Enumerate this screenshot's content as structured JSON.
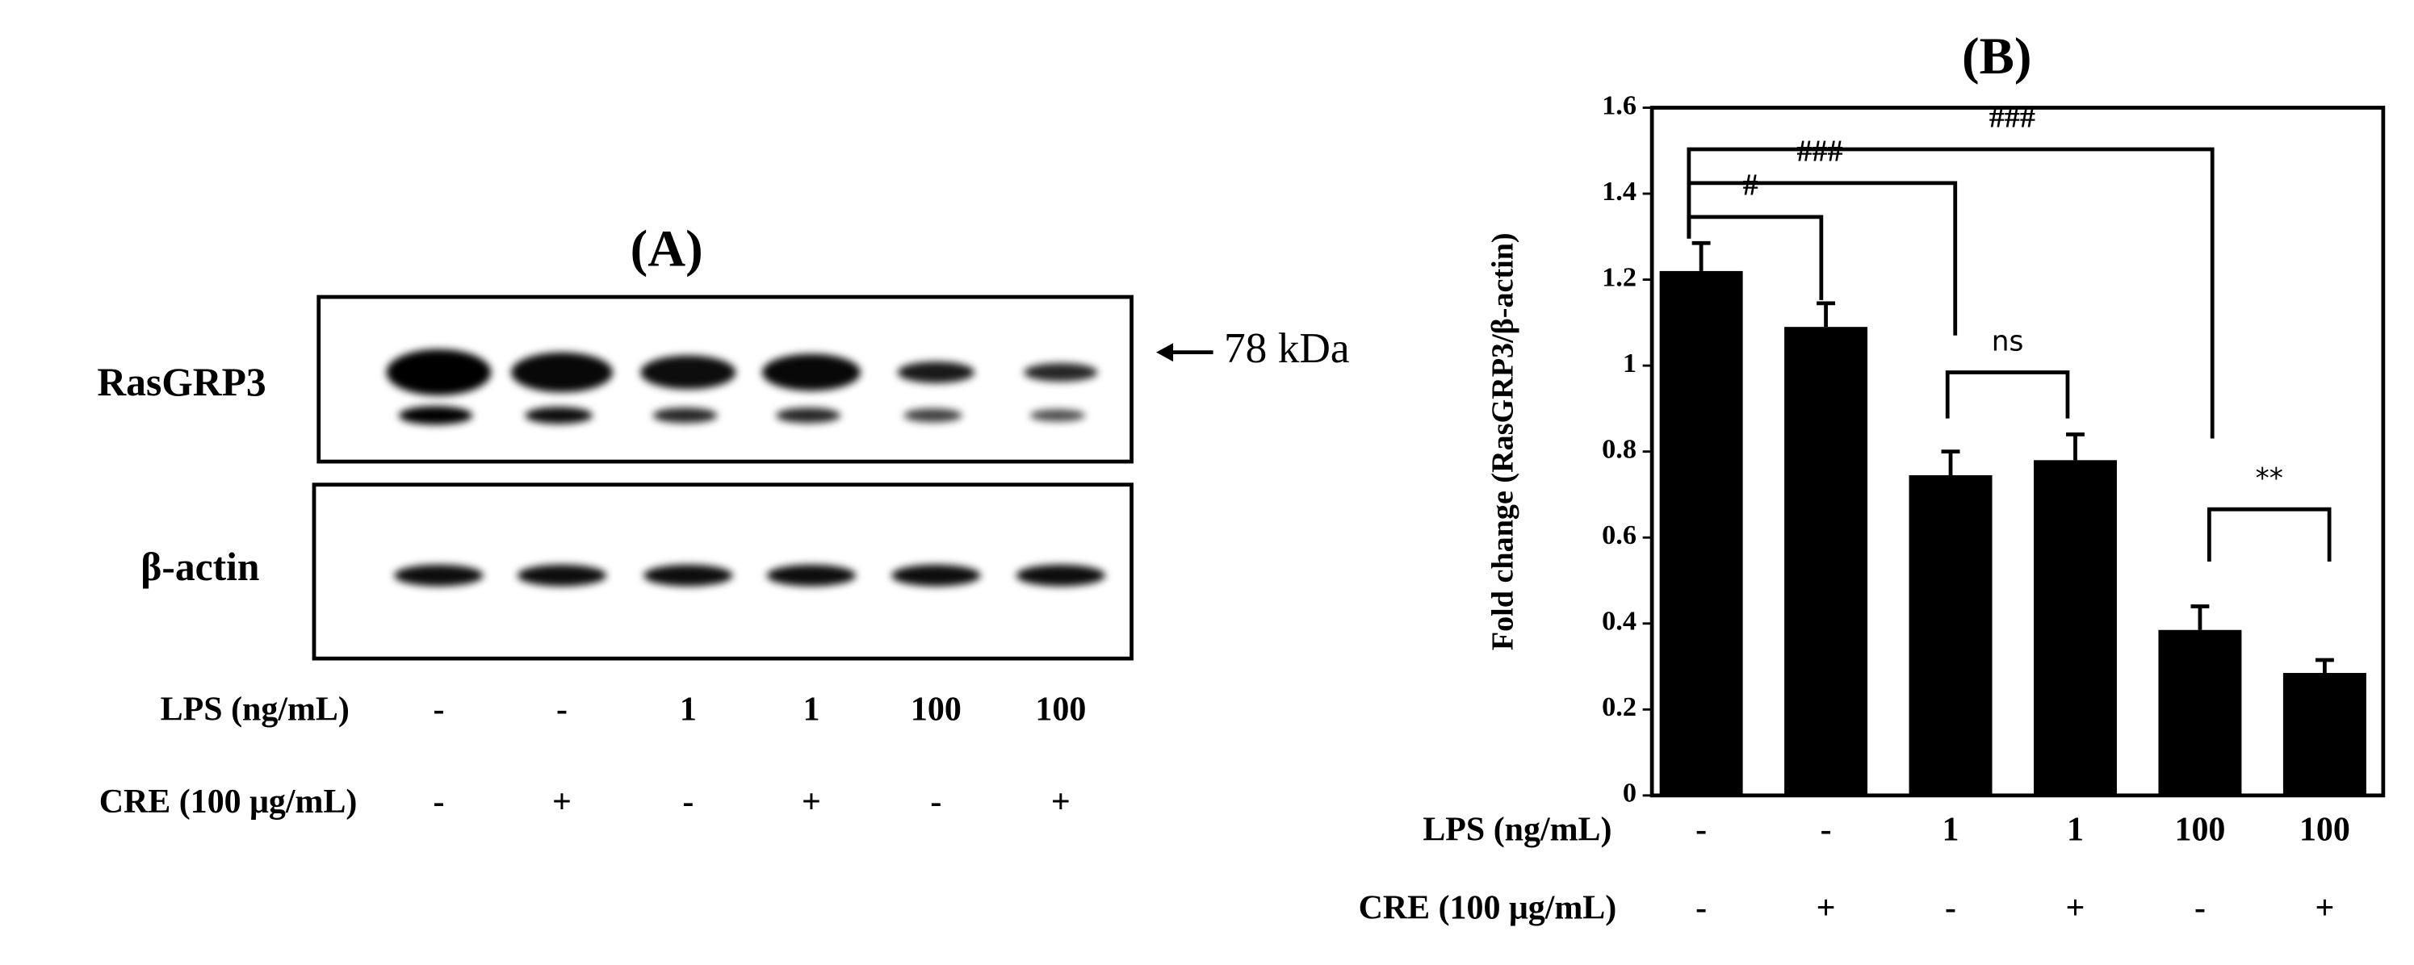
{
  "blot": {
    "title": "(A)",
    "bands": [
      "RasGRP3",
      "β-actin"
    ],
    "marker": "78 kDa",
    "row_labels": [
      "LPS (ng/mL)",
      "CRE (100 μg/mL)"
    ],
    "lps": [
      "-",
      "-",
      "1",
      "1",
      "100",
      "100"
    ],
    "cre": [
      "-",
      "+",
      "-",
      "+",
      "-",
      "+"
    ]
  },
  "chart_data": {
    "type": "bar",
    "title": "(B)",
    "y_label": "Fold change (RasGRP3/β-actin)",
    "row_labels": [
      "LPS (ng/mL)",
      "CRE (100 μg/mL)"
    ],
    "categories": [
      "-",
      "-",
      "1",
      "1",
      "100",
      "100"
    ],
    "categories_2": [
      "-",
      "+",
      "-",
      "+",
      "-",
      "+"
    ],
    "values": [
      1.22,
      1.09,
      0.745,
      0.78,
      0.385,
      0.285
    ],
    "errors": [
      0.065,
      0.055,
      0.055,
      0.06,
      0.055,
      0.03
    ],
    "color": "#000000",
    "ylim": [
      0,
      1.6
    ],
    "yticks": [
      0,
      0.2,
      0.4,
      0.6,
      0.8,
      1,
      1.2,
      1.4,
      1.6
    ],
    "comparisons": [
      {
        "label": "#",
        "from": 0,
        "to": 1
      },
      {
        "label": "###",
        "from": 0,
        "to": 2
      },
      {
        "label": "###",
        "from": 0,
        "to": 4
      },
      {
        "label": "ns",
        "from": 2,
        "to": 3
      },
      {
        "label": "**",
        "from": 4,
        "to": 5
      }
    ]
  }
}
